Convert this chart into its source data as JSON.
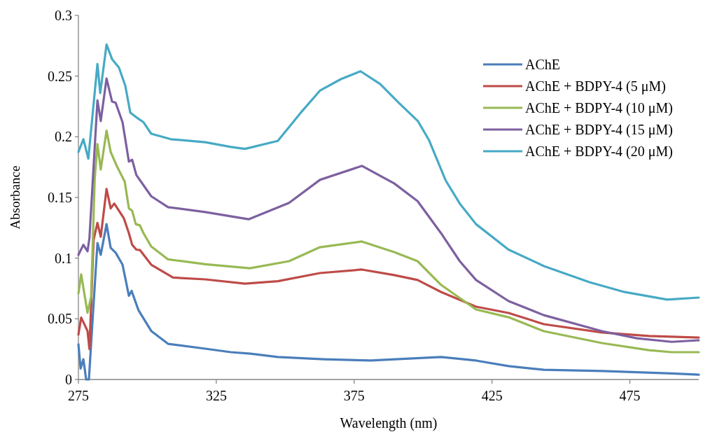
{
  "chart_data": {
    "type": "line",
    "xlabel": "Wavelength  (nm)",
    "ylabel": "Absorbance",
    "xlim": [
      275,
      500
    ],
    "ylim": [
      0,
      0.3
    ],
    "xticks": [
      275,
      325,
      375,
      425,
      475
    ],
    "yticks": [
      0,
      0.05,
      0.1,
      0.15,
      0.2,
      0.25,
      0.3
    ],
    "grid": false,
    "legend": "top right",
    "marker": "none",
    "line_style": "solid",
    "series": [
      {
        "name": "AChE",
        "color": "#4a7ebb",
        "x": [
          275,
          275.8,
          276.8,
          277.8,
          278.8,
          280,
          281.9,
          283.1,
          285.2,
          286.7,
          288.5,
          291,
          293.3,
          294.3,
          296.8,
          301.4,
          307.5,
          321,
          330.3,
          337.4,
          347.3,
          364,
          381,
          406.5,
          419.2,
          431,
          443.8,
          464.9,
          490.2,
          500
        ],
        "values": [
          0.029,
          0.009,
          0.0167,
          0,
          0,
          0.044,
          0.1125,
          0.1027,
          0.128,
          0.1085,
          0.1045,
          0.0946,
          0.069,
          0.073,
          0.057,
          0.04,
          0.0294,
          0.0254,
          0.0225,
          0.0213,
          0.0185,
          0.0167,
          0.0156,
          0.0185,
          0.0156,
          0.011,
          0.008,
          0.007,
          0.005,
          0.004
        ]
      },
      {
        "name": "AChE + BDPY-4 (5 μM)",
        "color": "#be4b48",
        "x": [
          275,
          276,
          278.3,
          279,
          280.5,
          281.9,
          283.1,
          285.2,
          286.7,
          288,
          291.5,
          293.3,
          294.5,
          296,
          297.3,
          301.4,
          309.3,
          321,
          335.4,
          347.3,
          362.6,
          377.8,
          389.5,
          398,
          406.5,
          419.2,
          431,
          443.8,
          464.9,
          481.9,
          500
        ],
        "values": [
          0.037,
          0.051,
          0.04,
          0.025,
          0.115,
          0.129,
          0.1176,
          0.157,
          0.141,
          0.145,
          0.1327,
          0.1206,
          0.111,
          0.107,
          0.1067,
          0.0946,
          0.084,
          0.0825,
          0.079,
          0.081,
          0.0877,
          0.0906,
          0.086,
          0.082,
          0.0721,
          0.06,
          0.0548,
          0.0456,
          0.0387,
          0.0358,
          0.0346
        ]
      },
      {
        "name": "AChE + BDPY-4 (10 μM)",
        "color": "#98b954",
        "x": [
          275,
          276,
          278.3,
          279.6,
          280.9,
          281.9,
          283.1,
          285.2,
          286.7,
          289,
          291.8,
          293.3,
          294.5,
          295.8,
          297.3,
          298.6,
          301.4,
          307.5,
          321,
          337.2,
          351.4,
          362.6,
          377.8,
          389.5,
          398,
          406.5,
          419.2,
          431,
          443.8,
          464.9,
          481.9,
          490.2,
          500
        ],
        "values": [
          0.071,
          0.0866,
          0.055,
          0.068,
          0.165,
          0.194,
          0.173,
          0.205,
          0.1875,
          0.1755,
          0.163,
          0.141,
          0.139,
          0.128,
          0.127,
          0.1206,
          0.1096,
          0.099,
          0.095,
          0.0917,
          0.0975,
          0.109,
          0.1137,
          0.105,
          0.0975,
          0.078,
          0.0577,
          0.0513,
          0.0398,
          0.03,
          0.0242,
          0.0225,
          0.0225
        ]
      },
      {
        "name": "AChE + BDPY-4 (15 μM)",
        "color": "#7d60a0",
        "x": [
          275,
          276.8,
          278.3,
          279,
          281.9,
          283.1,
          285.2,
          287.2,
          288.5,
          291,
          293.3,
          294.5,
          296,
          301.4,
          307.5,
          321,
          336.7,
          351.4,
          362.6,
          377.8,
          389.5,
          398,
          406.5,
          413.3,
          419.2,
          431,
          443.8,
          464.9,
          477.5,
          490.2,
          500
        ],
        "values": [
          0.1027,
          0.111,
          0.1056,
          0.1166,
          0.23,
          0.213,
          0.248,
          0.229,
          0.228,
          0.212,
          0.1795,
          0.181,
          0.1685,
          0.151,
          0.142,
          0.138,
          0.132,
          0.1455,
          0.1645,
          0.176,
          0.1616,
          0.147,
          0.1206,
          0.0975,
          0.082,
          0.0646,
          0.053,
          0.0398,
          0.034,
          0.031,
          0.0323
        ]
      },
      {
        "name": "AChE + BDPY-4 (20 μM)",
        "color": "#46aac5",
        "x": [
          275,
          276.8,
          278.6,
          281.9,
          282.9,
          285.2,
          287.2,
          289.7,
          292,
          293.8,
          296,
          298.6,
          301.4,
          308.5,
          321,
          330.3,
          335.4,
          347.3,
          355.7,
          362.6,
          370.2,
          377.3,
          384.4,
          391.2,
          398.1,
          402.2,
          408.2,
          413.3,
          419.2,
          431,
          443.8,
          460.5,
          473.2,
          488.5,
          500
        ],
        "values": [
          0.1875,
          0.198,
          0.182,
          0.26,
          0.236,
          0.276,
          0.264,
          0.257,
          0.242,
          0.22,
          0.216,
          0.212,
          0.2025,
          0.198,
          0.1955,
          0.1916,
          0.19,
          0.1966,
          0.22,
          0.238,
          0.2475,
          0.254,
          0.2435,
          0.228,
          0.213,
          0.197,
          0.164,
          0.145,
          0.128,
          0.107,
          0.0935,
          0.08,
          0.072,
          0.0658,
          0.0675
        ]
      }
    ]
  }
}
